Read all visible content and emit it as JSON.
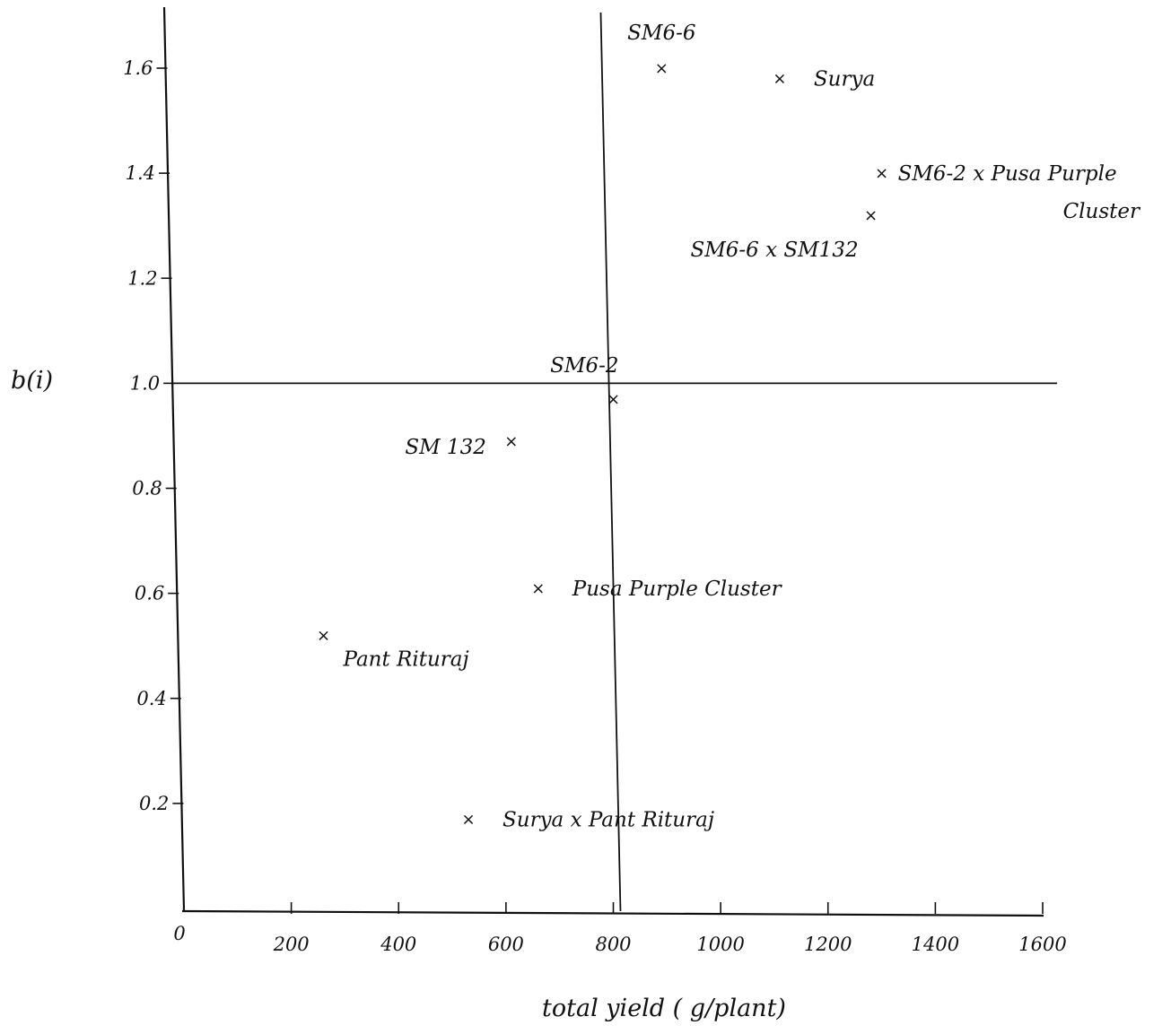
{
  "chart_data": {
    "type": "scatter",
    "xlabel": "total yield ( g/plant)",
    "ylabel": "b(i)",
    "x_ticks": [
      0,
      200,
      400,
      600,
      800,
      1000,
      1200,
      1400,
      1600
    ],
    "x_tick_labels": [
      "0",
      "200",
      "400",
      "600",
      "800",
      "1000",
      "1200",
      "1400",
      "1600"
    ],
    "y_ticks": [
      0.2,
      0.4,
      0.6,
      0.8,
      1.0,
      1.2,
      1.4,
      1.6
    ],
    "y_tick_labels": [
      "0.2",
      "0.4",
      "0.6",
      "0.8",
      "1.0",
      "1.2",
      "1.4",
      "1.6"
    ],
    "xlim": [
      0,
      1620
    ],
    "ylim": [
      0,
      1.72
    ],
    "reference_lines": {
      "horizontal_y": 1.0,
      "vertical_x": 810
    },
    "points": [
      {
        "label": "SM6-6",
        "x": 890,
        "y": 1.6,
        "label_pos": "above"
      },
      {
        "label": "Surya",
        "x": 1110,
        "y": 1.58,
        "label_pos": "right"
      },
      {
        "label": "SM6-2 x Pusa Purple Cluster",
        "x": 1300,
        "y": 1.4,
        "label_pos": "right-wrap"
      },
      {
        "label": "SM6-6 x SM132",
        "x": 1280,
        "y": 1.32,
        "label_pos": "below-left"
      },
      {
        "label": "SM6-2",
        "x": 800,
        "y": 0.97,
        "label_pos": "above-left"
      },
      {
        "label": "SM 132",
        "x": 610,
        "y": 0.89,
        "label_pos": "left"
      },
      {
        "label": "Pusa Purple Cluster",
        "x": 660,
        "y": 0.61,
        "label_pos": "right"
      },
      {
        "label": "Pant Rituraj",
        "x": 260,
        "y": 0.52,
        "label_pos": "below-right"
      },
      {
        "label": "Surya x Pant Rituraj",
        "x": 530,
        "y": 0.17,
        "label_pos": "right"
      }
    ]
  }
}
